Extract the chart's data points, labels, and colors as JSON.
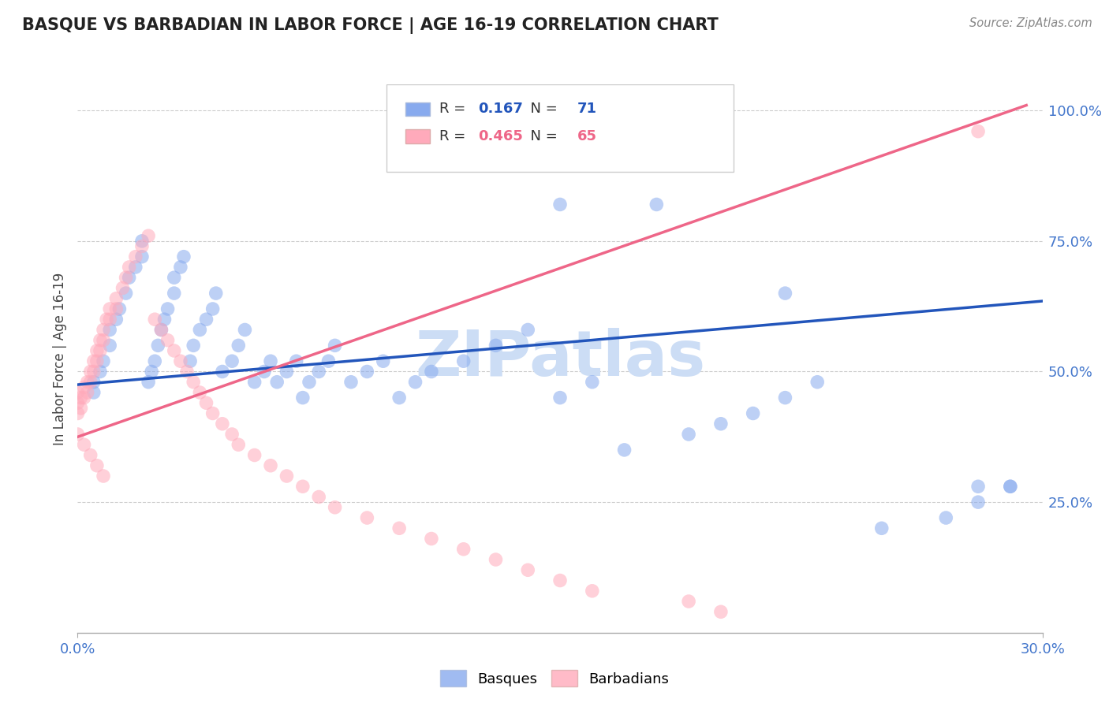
{
  "title": "BASQUE VS BARBADIAN IN LABOR FORCE | AGE 16-19 CORRELATION CHART",
  "source_text": "Source: ZipAtlas.com",
  "ylabel": "In Labor Force | Age 16-19",
  "xlim": [
    0.0,
    0.3
  ],
  "ylim": [
    0.0,
    1.05
  ],
  "xticks": [
    0.0,
    0.3
  ],
  "xticklabels": [
    "0.0%",
    "30.0%"
  ],
  "yticks_right": [
    0.25,
    0.5,
    0.75,
    1.0
  ],
  "yticklabels_right": [
    "25.0%",
    "50.0%",
    "75.0%",
    "100.0%"
  ],
  "grid_color": "#cccccc",
  "background_color": "#ffffff",
  "watermark": "ZIPatlas",
  "watermark_color": "#ccddf5",
  "blue_color": "#88aaee",
  "pink_color": "#ffaabb",
  "blue_line_color": "#2255bb",
  "pink_line_color": "#ee6688",
  "legend_R_blue": "0.167",
  "legend_N_blue": "71",
  "legend_R_pink": "0.465",
  "legend_N_pink": "65",
  "blue_scatter_x": [
    0.005,
    0.005,
    0.007,
    0.008,
    0.01,
    0.01,
    0.012,
    0.013,
    0.015,
    0.016,
    0.018,
    0.02,
    0.02,
    0.022,
    0.023,
    0.024,
    0.025,
    0.026,
    0.027,
    0.028,
    0.03,
    0.03,
    0.032,
    0.033,
    0.035,
    0.036,
    0.038,
    0.04,
    0.042,
    0.043,
    0.045,
    0.048,
    0.05,
    0.052,
    0.055,
    0.058,
    0.06,
    0.062,
    0.065,
    0.068,
    0.07,
    0.072,
    0.075,
    0.078,
    0.08,
    0.085,
    0.09,
    0.095,
    0.1,
    0.105,
    0.11,
    0.12,
    0.13,
    0.14,
    0.15,
    0.16,
    0.17,
    0.19,
    0.2,
    0.21,
    0.22,
    0.23,
    0.25,
    0.27,
    0.28,
    0.29,
    0.15,
    0.18,
    0.22,
    0.28,
    0.29
  ],
  "blue_scatter_y": [
    0.48,
    0.46,
    0.5,
    0.52,
    0.55,
    0.58,
    0.6,
    0.62,
    0.65,
    0.68,
    0.7,
    0.72,
    0.75,
    0.48,
    0.5,
    0.52,
    0.55,
    0.58,
    0.6,
    0.62,
    0.65,
    0.68,
    0.7,
    0.72,
    0.52,
    0.55,
    0.58,
    0.6,
    0.62,
    0.65,
    0.5,
    0.52,
    0.55,
    0.58,
    0.48,
    0.5,
    0.52,
    0.48,
    0.5,
    0.52,
    0.45,
    0.48,
    0.5,
    0.52,
    0.55,
    0.48,
    0.5,
    0.52,
    0.45,
    0.48,
    0.5,
    0.52,
    0.55,
    0.58,
    0.45,
    0.48,
    0.35,
    0.38,
    0.4,
    0.42,
    0.45,
    0.48,
    0.2,
    0.22,
    0.25,
    0.28,
    0.82,
    0.82,
    0.65,
    0.28,
    0.28
  ],
  "pink_scatter_x": [
    0.0,
    0.0,
    0.0,
    0.001,
    0.001,
    0.002,
    0.002,
    0.003,
    0.003,
    0.004,
    0.004,
    0.005,
    0.005,
    0.006,
    0.006,
    0.007,
    0.007,
    0.008,
    0.008,
    0.009,
    0.01,
    0.01,
    0.012,
    0.012,
    0.014,
    0.015,
    0.016,
    0.018,
    0.02,
    0.022,
    0.024,
    0.026,
    0.028,
    0.03,
    0.032,
    0.034,
    0.036,
    0.038,
    0.04,
    0.042,
    0.045,
    0.048,
    0.05,
    0.055,
    0.06,
    0.065,
    0.07,
    0.075,
    0.08,
    0.09,
    0.1,
    0.11,
    0.12,
    0.13,
    0.14,
    0.15,
    0.16,
    0.19,
    0.2,
    0.28,
    0.0,
    0.002,
    0.004,
    0.006,
    0.008
  ],
  "pink_scatter_y": [
    0.46,
    0.44,
    0.42,
    0.45,
    0.43,
    0.47,
    0.45,
    0.48,
    0.46,
    0.5,
    0.48,
    0.52,
    0.5,
    0.54,
    0.52,
    0.56,
    0.54,
    0.58,
    0.56,
    0.6,
    0.62,
    0.6,
    0.64,
    0.62,
    0.66,
    0.68,
    0.7,
    0.72,
    0.74,
    0.76,
    0.6,
    0.58,
    0.56,
    0.54,
    0.52,
    0.5,
    0.48,
    0.46,
    0.44,
    0.42,
    0.4,
    0.38,
    0.36,
    0.34,
    0.32,
    0.3,
    0.28,
    0.26,
    0.24,
    0.22,
    0.2,
    0.18,
    0.16,
    0.14,
    0.12,
    0.1,
    0.08,
    0.06,
    0.04,
    0.96,
    0.38,
    0.36,
    0.34,
    0.32,
    0.3
  ],
  "blue_line_x0": 0.0,
  "blue_line_x1": 0.3,
  "blue_line_y0": 0.475,
  "blue_line_y1": 0.635,
  "pink_line_x0": 0.0,
  "pink_line_x1": 0.295,
  "pink_line_y0": 0.375,
  "pink_line_y1": 1.01
}
